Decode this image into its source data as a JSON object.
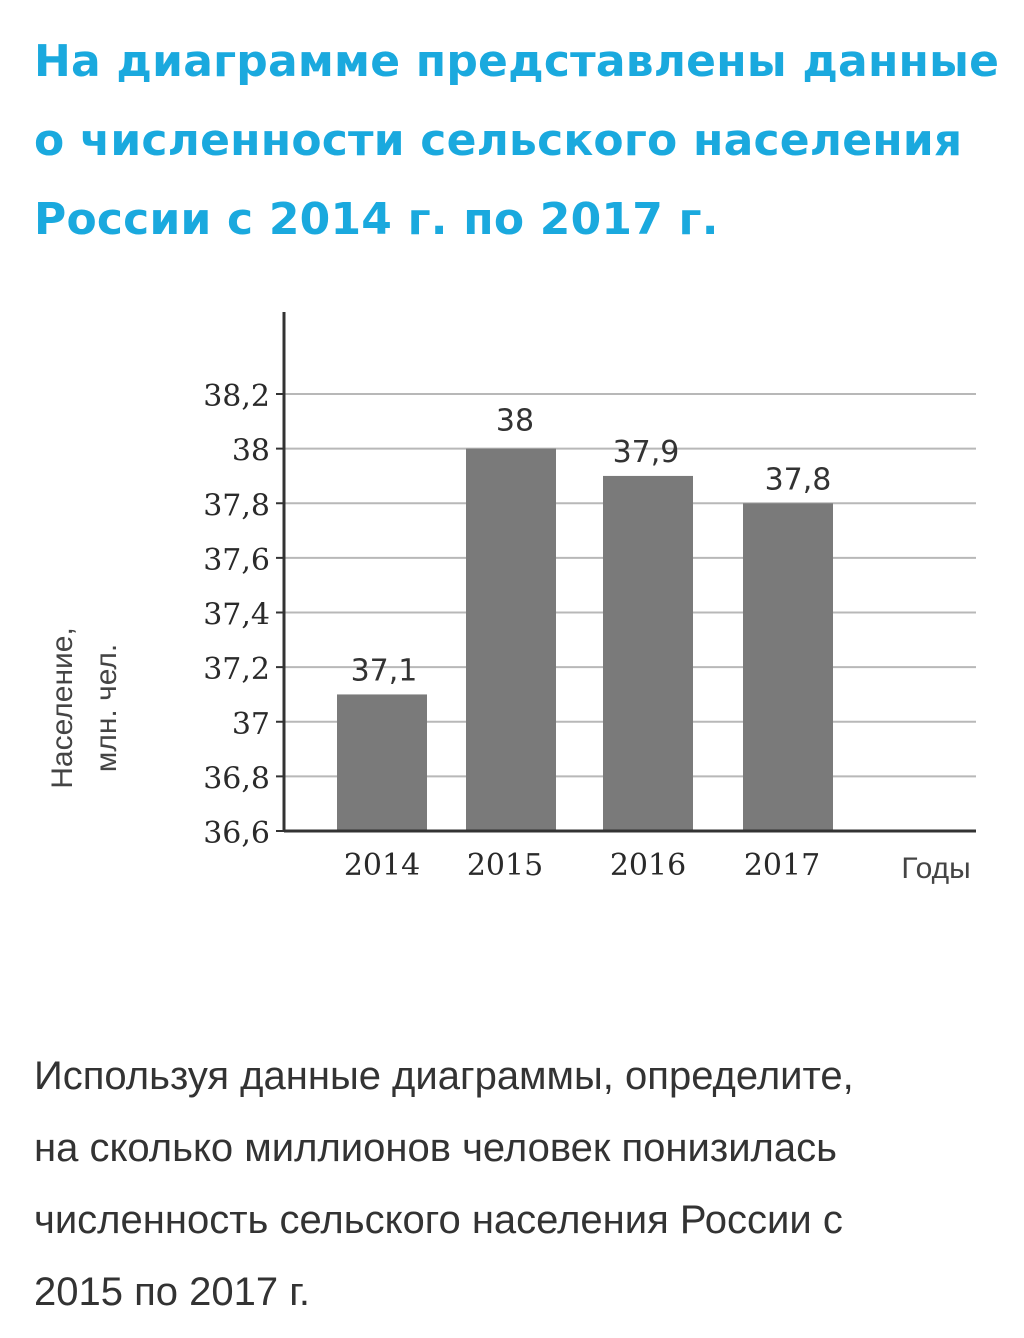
{
  "heading": {
    "lines": [
      "На диаграмме представлены данные",
      "о численности сельского населения",
      "России с 2014 г. по 2017 г."
    ],
    "color": "#1aa9de"
  },
  "question": {
    "lines": [
      "Используя данные диаграммы, определите,",
      "на сколько миллионов человек понизилась",
      "численность сельского населения России с",
      "2015 по 2017 г."
    ],
    "color": "#333333"
  },
  "chart_data": {
    "type": "bar",
    "categories": [
      "2014",
      "2015",
      "2016",
      "2017"
    ],
    "values": [
      37.1,
      38,
      37.9,
      37.8
    ],
    "data_labels": [
      "37,1",
      "38",
      "37,9",
      "37,8"
    ],
    "yticks": [
      "38,2",
      "38",
      "37,8",
      "37,6",
      "37,4",
      "37,2",
      "37",
      "36,8",
      "36,6"
    ],
    "ylim": [
      36.6,
      38.2
    ],
    "ylabel_lines": [
      "Население,",
      "млн. чел."
    ],
    "xlabel": "Годы",
    "title": "",
    "grid": true,
    "bar_color": "#7a7a7a",
    "axis_color": "#333333",
    "grid_color": "#b8b8b8"
  }
}
